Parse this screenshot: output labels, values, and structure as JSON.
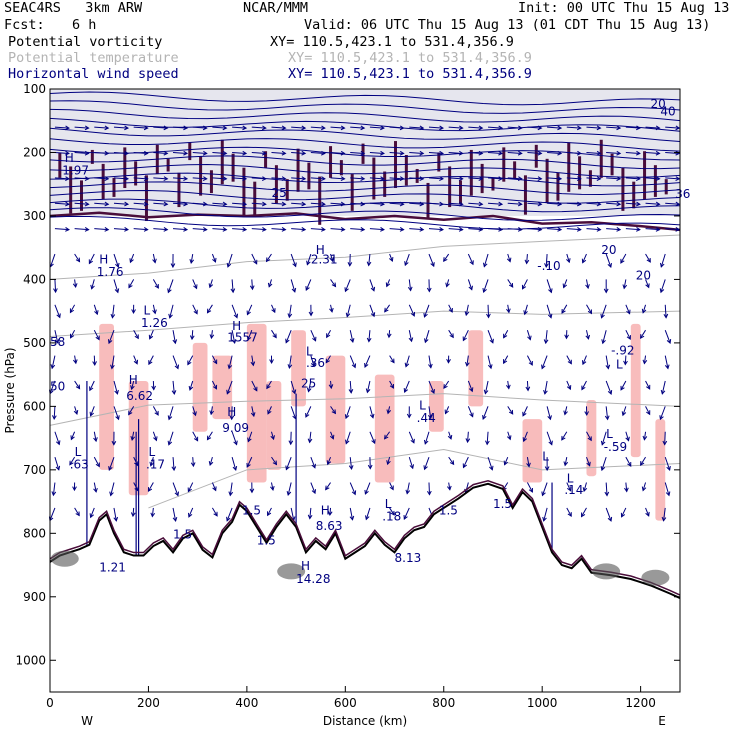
{
  "header": {
    "model": "SEAC4RS   3km ARW",
    "center": "NCAR/MMM",
    "init": "Init: 00 UTC Thu 15 Aug 13",
    "fcst_label": "Fcst:",
    "fcst_value": "6 h",
    "valid": "Valid: 06 UTC Thu 15 Aug 13 (01 CDT Thu 15 Aug 13)",
    "fields": [
      {
        "name": "Potential vorticity",
        "xy": "XY= 110.5,423.1 to 531.4,356.9",
        "color": "#000000"
      },
      {
        "name": "Potential temperature",
        "xy": "XY= 110.5,423.1 to 531.4,356.9",
        "color": "#b4b4b4"
      },
      {
        "name": "Horizontal wind speed",
        "xy": "XY= 110.5,423.1 to 531.4,356.9",
        "color": "#000080"
      }
    ]
  },
  "colors": {
    "pv_contour": "#4a0d3a",
    "theta_contour": "#b4b4b4",
    "wind": "#000080",
    "pv_fill": "#f8bcbc",
    "terrain_shade": "#555555"
  },
  "chart_data": {
    "type": "cross-section",
    "xlabel": "Distance (km)",
    "ylabel": "Pressure (hPa)",
    "xlim": [
      0,
      1280
    ],
    "ylim": [
      1050,
      100
    ],
    "x_ticks": [
      0,
      200,
      400,
      600,
      800,
      1000,
      1200
    ],
    "y_ticks": [
      100,
      200,
      300,
      400,
      500,
      600,
      700,
      800,
      900,
      1000
    ],
    "x_end_labels": {
      "left": "W",
      "right": "E"
    },
    "terrain_surface": [
      [
        0,
        845
      ],
      [
        20,
        835
      ],
      [
        40,
        830
      ],
      [
        60,
        825
      ],
      [
        80,
        818
      ],
      [
        100,
        780
      ],
      [
        115,
        770
      ],
      [
        130,
        800
      ],
      [
        150,
        830
      ],
      [
        170,
        835
      ],
      [
        190,
        835
      ],
      [
        210,
        820
      ],
      [
        230,
        812
      ],
      [
        250,
        830
      ],
      [
        270,
        808
      ],
      [
        290,
        800
      ],
      [
        310,
        826
      ],
      [
        330,
        838
      ],
      [
        350,
        800
      ],
      [
        370,
        782
      ],
      [
        385,
        755
      ],
      [
        400,
        765
      ],
      [
        420,
        790
      ],
      [
        440,
        815
      ],
      [
        460,
        790
      ],
      [
        480,
        770
      ],
      [
        500,
        790
      ],
      [
        520,
        830
      ],
      [
        540,
        812
      ],
      [
        560,
        825
      ],
      [
        580,
        800
      ],
      [
        600,
        840
      ],
      [
        620,
        830
      ],
      [
        640,
        820
      ],
      [
        660,
        800
      ],
      [
        680,
        818
      ],
      [
        700,
        830
      ],
      [
        720,
        808
      ],
      [
        740,
        795
      ],
      [
        760,
        790
      ],
      [
        780,
        770
      ],
      [
        800,
        760
      ],
      [
        830,
        745
      ],
      [
        860,
        728
      ],
      [
        890,
        722
      ],
      [
        920,
        730
      ],
      [
        940,
        760
      ],
      [
        960,
        735
      ],
      [
        980,
        750
      ],
      [
        1000,
        790
      ],
      [
        1020,
        830
      ],
      [
        1040,
        850
      ],
      [
        1060,
        855
      ],
      [
        1080,
        840
      ],
      [
        1100,
        862
      ],
      [
        1140,
        866
      ],
      [
        1180,
        872
      ],
      [
        1220,
        882
      ],
      [
        1260,
        895
      ],
      [
        1280,
        902
      ]
    ],
    "tropopause_pv_line": [
      [
        0,
        300
      ],
      [
        100,
        295
      ],
      [
        200,
        302
      ],
      [
        300,
        298
      ],
      [
        400,
        300
      ],
      [
        500,
        296
      ],
      [
        600,
        305
      ],
      [
        700,
        300
      ],
      [
        800,
        306
      ],
      [
        900,
        300
      ],
      [
        1000,
        312
      ],
      [
        1100,
        310
      ],
      [
        1200,
        316
      ],
      [
        1280,
        322
      ]
    ],
    "theta_contours": [
      {
        "label": "",
        "points": [
          [
            0,
            400
          ],
          [
            200,
            390
          ],
          [
            400,
            372
          ],
          [
            600,
            365
          ],
          [
            800,
            348
          ],
          [
            1000,
            340
          ],
          [
            1280,
            330
          ]
        ]
      },
      {
        "label": "",
        "points": [
          [
            0,
            490
          ],
          [
            200,
            480
          ],
          [
            400,
            468
          ],
          [
            600,
            460
          ],
          [
            800,
            450
          ],
          [
            1000,
            455
          ],
          [
            1280,
            450
          ]
        ]
      },
      {
        "label": "",
        "points": [
          [
            0,
            630
          ],
          [
            200,
            598
          ],
          [
            400,
            592
          ],
          [
            600,
            588
          ],
          [
            800,
            580
          ],
          [
            1000,
            590
          ],
          [
            1280,
            600
          ]
        ]
      },
      {
        "label": "",
        "points": [
          [
            200,
            760
          ],
          [
            400,
            700
          ],
          [
            600,
            690
          ],
          [
            800,
            668
          ],
          [
            1000,
            700
          ],
          [
            1280,
            690
          ]
        ]
      }
    ],
    "pv_fill_regions": [
      {
        "x": [
          100,
          130
        ],
        "p": [
          470,
          700
        ]
      },
      {
        "x": [
          160,
          200
        ],
        "p": [
          560,
          740
        ]
      },
      {
        "x": [
          290,
          320
        ],
        "p": [
          500,
          640
        ]
      },
      {
        "x": [
          330,
          370
        ],
        "p": [
          520,
          620
        ]
      },
      {
        "x": [
          400,
          440
        ],
        "p": [
          470,
          720
        ]
      },
      {
        "x": [
          440,
          470
        ],
        "p": [
          560,
          700
        ]
      },
      {
        "x": [
          490,
          520
        ],
        "p": [
          480,
          600
        ]
      },
      {
        "x": [
          560,
          600
        ],
        "p": [
          520,
          690
        ]
      },
      {
        "x": [
          660,
          700
        ],
        "p": [
          550,
          720
        ]
      },
      {
        "x": [
          770,
          800
        ],
        "p": [
          560,
          640
        ]
      },
      {
        "x": [
          850,
          880
        ],
        "p": [
          480,
          600
        ]
      },
      {
        "x": [
          960,
          1000
        ],
        "p": [
          620,
          720
        ]
      },
      {
        "x": [
          1090,
          1110
        ],
        "p": [
          590,
          710
        ]
      },
      {
        "x": [
          1180,
          1200
        ],
        "p": [
          470,
          680
        ]
      },
      {
        "x": [
          1230,
          1250
        ],
        "p": [
          620,
          780
        ]
      }
    ],
    "annotations": [
      {
        "text": "H",
        "x": 30,
        "p": 215
      },
      {
        "text": "1.97",
        "x": 25,
        "p": 235
      },
      {
        "text": "H",
        "x": 100,
        "p": 375
      },
      {
        "text": "1.76",
        "x": 95,
        "p": 395
      },
      {
        "text": "L",
        "x": 190,
        "p": 455
      },
      {
        "text": "1.26",
        "x": 185,
        "p": 475
      },
      {
        "text": "H",
        "x": 160,
        "p": 565
      },
      {
        "text": "6.62",
        "x": 155,
        "p": 590
      },
      {
        "text": "L",
        "x": 200,
        "p": 678
      },
      {
        "text": ".17",
        "x": 195,
        "p": 698
      },
      {
        "text": "L",
        "x": 50,
        "p": 678
      },
      {
        "text": ".63",
        "x": 40,
        "p": 698
      },
      {
        "text": "H",
        "x": 370,
        "p": 480
      },
      {
        "text": "1557",
        "x": 360,
        "p": 498
      },
      {
        "text": "L",
        "x": 520,
        "p": 520
      },
      {
        "text": ".36",
        "x": 520,
        "p": 538
      },
      {
        "text": "H",
        "x": 540,
        "p": 360
      },
      {
        "text": "2.31",
        "x": 530,
        "p": 375
      },
      {
        "text": "H",
        "x": 360,
        "p": 615
      },
      {
        "text": "9.09",
        "x": 350,
        "p": 640
      },
      {
        "text": "H",
        "x": 550,
        "p": 770
      },
      {
        "text": "8.63",
        "x": 540,
        "p": 795
      },
      {
        "text": "L",
        "x": 750,
        "p": 605
      },
      {
        "text": ".44",
        "x": 745,
        "p": 625
      },
      {
        "text": "L",
        "x": 1000,
        "p": 685
      },
      {
        "text": "-.10",
        "x": 990,
        "p": 385
      },
      {
        "text": "L",
        "x": 1130,
        "p": 650
      },
      {
        "text": "-.59",
        "x": 1125,
        "p": 670
      },
      {
        "text": "L",
        "x": 1150,
        "p": 540
      },
      {
        "text": "-.92",
        "x": 1140,
        "p": 518
      },
      {
        "text": "L",
        "x": 680,
        "p": 760
      },
      {
        "text": ".18",
        "x": 675,
        "p": 780
      },
      {
        "text": "L",
        "x": 1050,
        "p": 720
      },
      {
        "text": ".14",
        "x": 1045,
        "p": 738
      },
      {
        "text": "H",
        "x": 510,
        "p": 858
      },
      {
        "text": "14.28",
        "x": 500,
        "p": 878
      },
      {
        "text": "8.13",
        "x": 700,
        "p": 845
      },
      {
        "text": "1.5",
        "x": 390,
        "p": 770
      },
      {
        "text": "1.5",
        "x": 790,
        "p": 770
      },
      {
        "text": "1.5",
        "x": 250,
        "p": 808
      },
      {
        "text": "1.5",
        "x": 900,
        "p": 760
      },
      {
        "text": "1.5",
        "x": 420,
        "p": 818
      },
      {
        "text": "1.21",
        "x": 100,
        "p": 860
      },
      {
        "text": "20",
        "x": 1120,
        "p": 360
      },
      {
        "text": "20",
        "x": 1190,
        "p": 400
      },
      {
        "text": "20",
        "x": 1220,
        "p": 130
      },
      {
        "text": "25",
        "x": 450,
        "p": 270
      },
      {
        "text": "25",
        "x": 510,
        "p": 570
      },
      {
        "text": "58",
        "x": 0,
        "p": 505
      },
      {
        "text": "50",
        "x": 0,
        "p": 575
      },
      {
        "text": "40",
        "x": 1240,
        "p": 142
      },
      {
        "text": "36",
        "x": 1270,
        "p": 272
      }
    ],
    "wind_barbs": {
      "x_start": 10,
      "x_step": 40,
      "p_levels": [
        160,
        200,
        240,
        280,
        320,
        360,
        400,
        440,
        480,
        520,
        560,
        600,
        640,
        680,
        720,
        760
      ],
      "upper_u": 4.0,
      "upper_v": 0.3,
      "mid_u": 1.0,
      "mid_v": -4.0
    }
  }
}
